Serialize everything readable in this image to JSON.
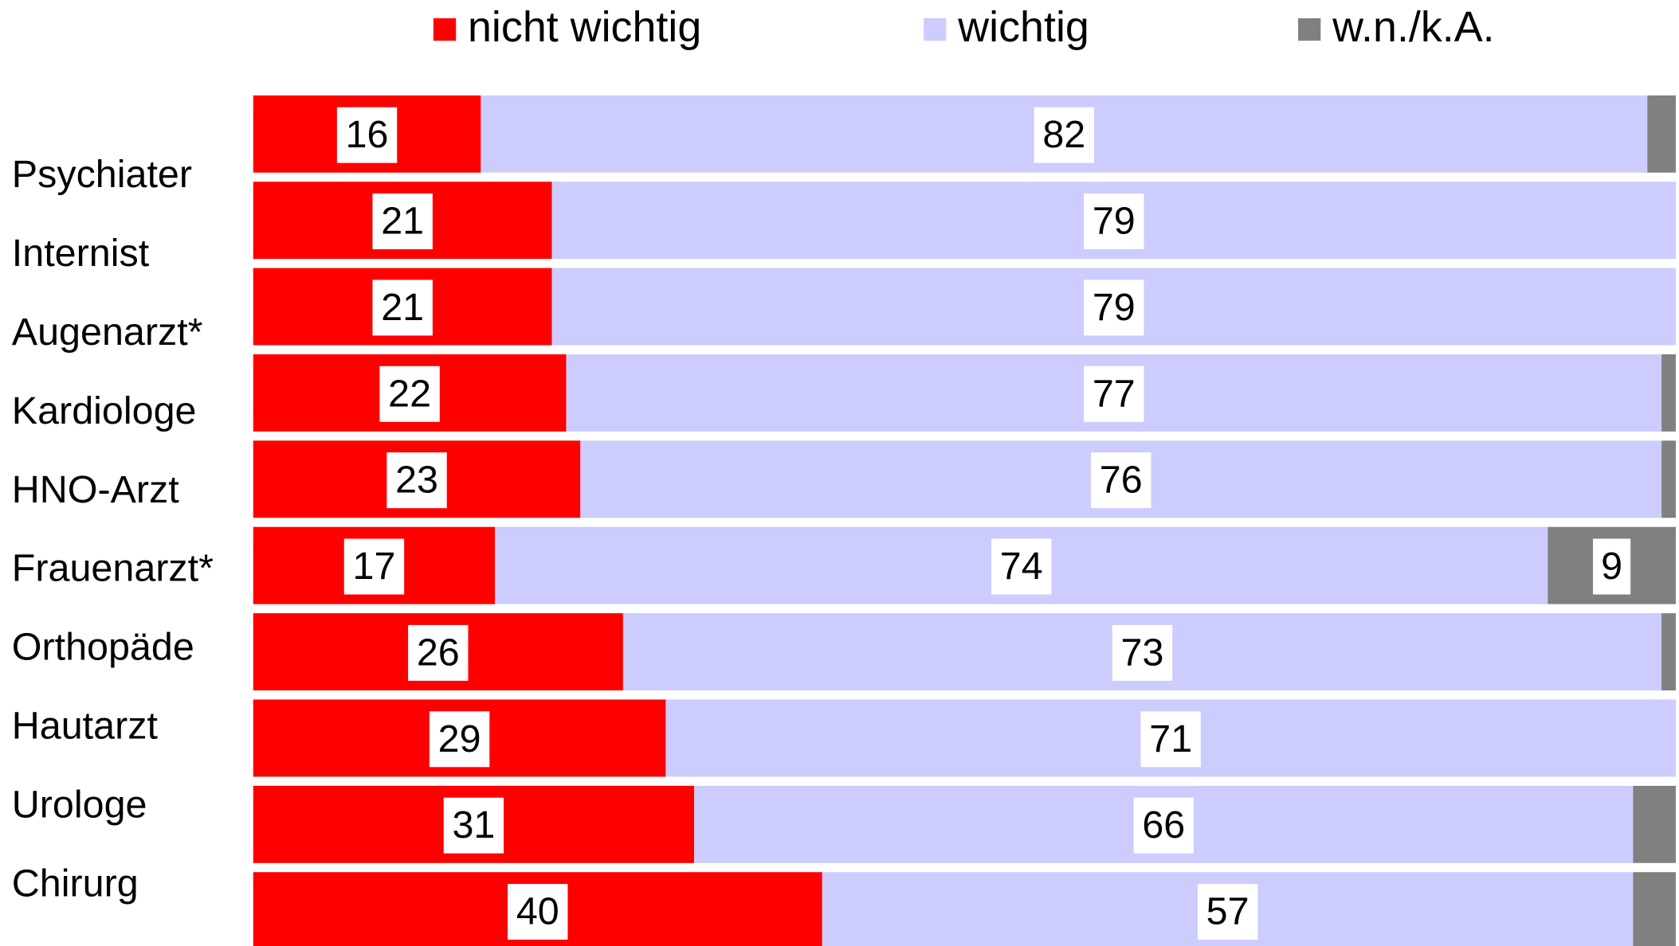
{
  "chart_data": {
    "type": "stacked_barh",
    "categories": [
      "Psychiater",
      "Internist",
      "Augenarzt*",
      "Kardiologe",
      "HNO-Arzt",
      "Frauenarzt*",
      "Orthopäde",
      "Hautarzt",
      "Urologe",
      "Chirurg"
    ],
    "series": [
      {
        "name": "nicht wichtig",
        "color": "#ff0000",
        "values": [
          16,
          21,
          21,
          22,
          23,
          17,
          26,
          29,
          31,
          40
        ]
      },
      {
        "name": "wichtig",
        "color": "#ccccff",
        "values": [
          82,
          79,
          79,
          77,
          76,
          74,
          73,
          71,
          66,
          57
        ]
      },
      {
        "name": "w.n./k.A.",
        "color": "#808080",
        "values": [
          2,
          0,
          0,
          1,
          1,
          9,
          1,
          0,
          3,
          3
        ]
      }
    ],
    "xlim": [
      0,
      100
    ],
    "legend": "top"
  }
}
